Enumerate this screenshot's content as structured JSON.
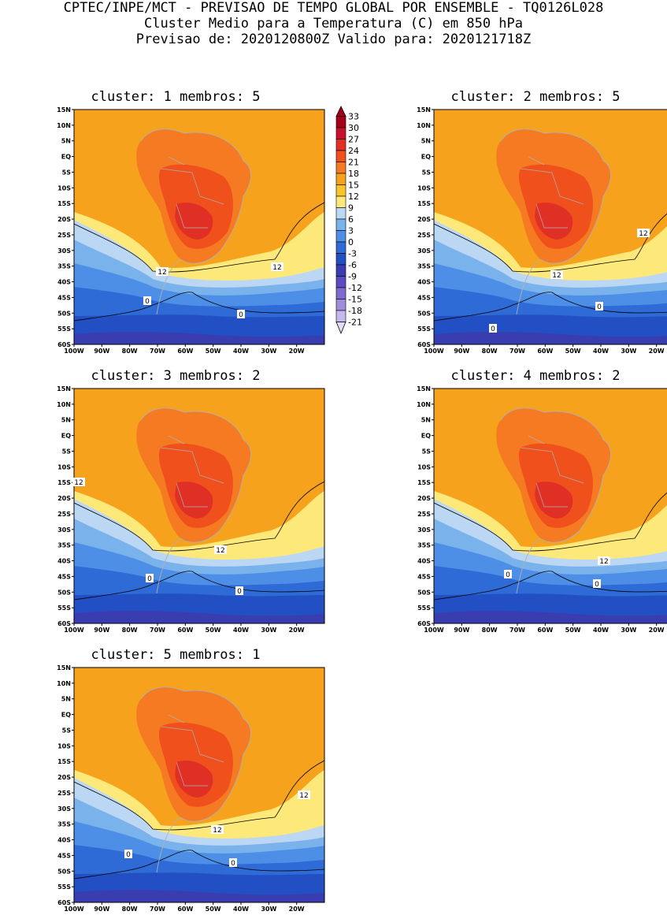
{
  "header": {
    "line1": "CPTEC/INPE/MCT - PREVISAO DE TEMPO GLOBAL POR ENSEMBLE - TQ0126L028",
    "line2": "Cluster Medio para a Temperatura (C) em 850 hPa",
    "line3": "Previsao de: 2020120800Z   Valido para: 2020121718Z"
  },
  "lat_ticks": [
    "15N",
    "10N",
    "5N",
    "EQ",
    "5S",
    "10S",
    "15S",
    "20S",
    "25S",
    "30S",
    "35S",
    "40S",
    "45S",
    "50S",
    "55S",
    "60S"
  ],
  "lon_ticks": [
    "100W",
    "90W",
    "80W",
    "70W",
    "60W",
    "50W",
    "40W",
    "30W",
    "20W"
  ],
  "legend": {
    "levels": [
      "33",
      "30",
      "27",
      "24",
      "21",
      "18",
      "15",
      "12",
      "9",
      "6",
      "3",
      "0",
      "-3",
      "-6",
      "-9",
      "-12",
      "-15",
      "-18",
      "-21"
    ],
    "colors": [
      "#a3001a",
      "#c8102e",
      "#e03025",
      "#f0501c",
      "#f57a22",
      "#f7a21c",
      "#fbc42a",
      "#fde87a",
      "#bcd7f4",
      "#7ab2ec",
      "#4d8fe6",
      "#2f6bd6",
      "#2250c4",
      "#3a3db0",
      "#5a4cc0",
      "#7d6bd0",
      "#a08ddc",
      "#c6b8ea",
      "#e2dbf5"
    ]
  },
  "clusters": [
    {
      "title": "cluster: 1   membros: 5",
      "labels": [
        "12",
        "12",
        "0",
        "0"
      ]
    },
    {
      "title": "cluster: 2   membros: 5",
      "labels": [
        "12",
        "12",
        "0",
        "0"
      ]
    },
    {
      "title": "cluster: 3   membros: 2",
      "labels": [
        "12",
        "12",
        "0",
        "0"
      ]
    },
    {
      "title": "cluster: 4   membros: 2",
      "labels": [
        "12",
        "0",
        "0"
      ]
    },
    {
      "title": "cluster: 5   membros: 1",
      "labels": [
        "12",
        "12",
        "0",
        "0"
      ]
    }
  ],
  "colors": {
    "c24": "#f0501c",
    "c21": "#f57a22",
    "c18": "#f7a21c",
    "c15": "#fbc42a",
    "c12": "#fde87a",
    "c9": "#bcd7f4",
    "c6": "#7ab2ec",
    "c3": "#4d8fe6",
    "c0": "#2f6bd6",
    "cm3": "#2250c4",
    "cm6": "#3a3db0",
    "cm9": "#5a4cc0",
    "c27": "#e03025",
    "c30": "#c8102e"
  }
}
